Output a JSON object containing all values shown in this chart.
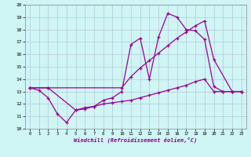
{
  "xlabel": "Windchill (Refroidissement éolien,°C)",
  "background_color": "#cff5f5",
  "grid_color": "#b8c8d8",
  "line_color": "#990099",
  "xlim_min": -0.5,
  "xlim_max": 23.5,
  "ylim_min": 10,
  "ylim_max": 20,
  "xticks": [
    0,
    1,
    2,
    3,
    4,
    5,
    6,
    7,
    8,
    9,
    10,
    11,
    12,
    13,
    14,
    15,
    16,
    17,
    18,
    19,
    20,
    21,
    22,
    23
  ],
  "yticks": [
    10,
    11,
    12,
    13,
    14,
    15,
    16,
    17,
    18,
    19,
    20
  ],
  "line1_x": [
    0,
    1,
    2,
    3,
    4,
    5,
    6,
    7,
    8,
    9,
    10,
    11,
    12,
    13,
    14,
    15,
    16,
    17,
    18,
    19,
    20,
    21,
    22,
    23
  ],
  "line1_y": [
    13.3,
    13.1,
    12.5,
    11.2,
    10.5,
    11.5,
    11.7,
    11.8,
    12.3,
    12.5,
    13.0,
    16.8,
    17.3,
    14.0,
    17.4,
    19.3,
    19.0,
    18.0,
    17.9,
    17.2,
    13.4,
    13.0,
    13.0,
    13.0
  ],
  "line2_x": [
    0,
    2,
    10,
    11,
    12,
    13,
    14,
    15,
    16,
    17,
    18,
    19,
    20,
    22,
    23
  ],
  "line2_y": [
    13.3,
    13.3,
    13.3,
    14.2,
    14.9,
    15.5,
    16.1,
    16.7,
    17.3,
    17.8,
    18.3,
    18.7,
    15.6,
    13.0,
    13.0
  ],
  "line3_x": [
    0,
    2,
    5,
    6,
    7,
    8,
    9,
    10,
    11,
    12,
    13,
    14,
    15,
    16,
    17,
    18,
    19,
    20,
    21,
    22,
    23
  ],
  "line3_y": [
    13.3,
    13.3,
    11.5,
    11.6,
    11.8,
    12.0,
    12.1,
    12.2,
    12.3,
    12.5,
    12.7,
    12.9,
    13.1,
    13.3,
    13.5,
    13.8,
    14.0,
    13.0,
    13.0,
    13.0,
    13.0
  ]
}
